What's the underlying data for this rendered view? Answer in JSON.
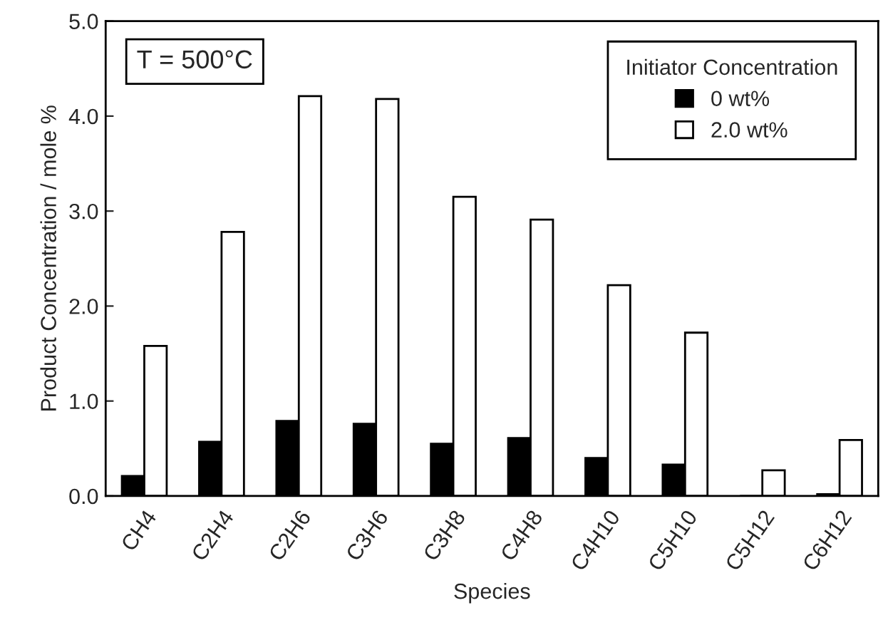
{
  "chart_data": {
    "type": "bar",
    "categories": [
      "CH4",
      "C2H4",
      "C2H6",
      "C3H6",
      "C3H8",
      "C4H8",
      "C4H10",
      "C5H10",
      "C5H12",
      "C6H12"
    ],
    "series": [
      {
        "name": "0 wt%",
        "color": "#000000",
        "values": [
          0.21,
          0.57,
          0.79,
          0.76,
          0.55,
          0.61,
          0.4,
          0.33,
          0,
          0.02
        ]
      },
      {
        "name": "2.0 wt%",
        "color": "#ffffff",
        "values": [
          1.58,
          2.78,
          4.21,
          4.18,
          3.15,
          2.91,
          2.22,
          1.72,
          0.27,
          0.59
        ]
      }
    ],
    "xlabel": "Species",
    "ylabel": "Product Concentration / mole %",
    "legend_title": "Initiator Concentration",
    "legend": "top right",
    "annotations": [
      "T = 500°C"
    ],
    "ylim": [
      0,
      5.0
    ],
    "yticks": [
      {
        "value": 0,
        "label": "0.0"
      },
      {
        "value": 1,
        "label": "1.0"
      },
      {
        "value": 2,
        "label": "2.0"
      },
      {
        "value": 3,
        "label": "3.0"
      },
      {
        "value": 4,
        "label": "4.0"
      },
      {
        "value": 5,
        "label": "5.0"
      }
    ],
    "grid": false
  }
}
